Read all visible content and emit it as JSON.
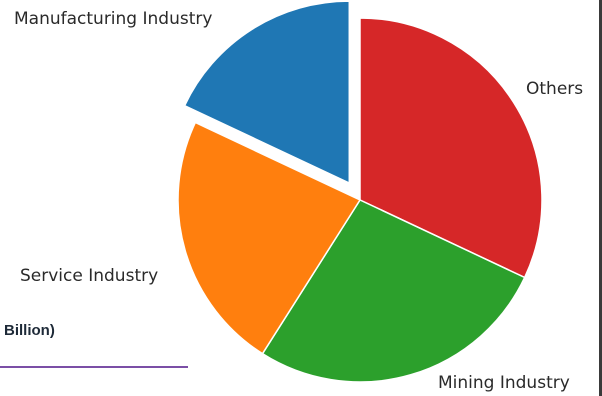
{
  "chart_data": {
    "type": "pie",
    "title": "",
    "exploded": "Manufacturing Industry",
    "slices": [
      {
        "label": "Others",
        "value": 32,
        "color": "#d62728"
      },
      {
        "label": "Mining Industry",
        "value": 27,
        "color": "#2ca02c"
      },
      {
        "label": "Service Industry",
        "value": 23,
        "color": "#ff7f0e"
      },
      {
        "label": "Manufacturing Industry",
        "value": 18,
        "color": "#1f77b4"
      }
    ]
  },
  "fragment": {
    "legend_text": "Billion)",
    "rule_color": "#7b4fa6"
  }
}
